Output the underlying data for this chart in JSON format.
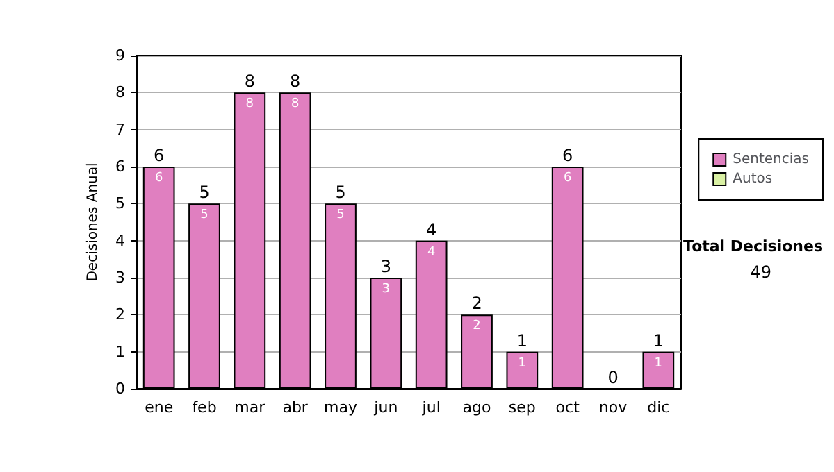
{
  "chart_data": {
    "type": "bar",
    "ylabel": "Decisiones Anual",
    "categories": [
      "ene",
      "feb",
      "mar",
      "abr",
      "may",
      "jun",
      "jul",
      "ago",
      "sep",
      "oct",
      "nov",
      "dic"
    ],
    "series": [
      {
        "name": "Sentencias",
        "color": "#e07fc0",
        "values": [
          6,
          5,
          8,
          8,
          5,
          3,
          4,
          2,
          1,
          6,
          0,
          1
        ],
        "value_labels": [
          "6",
          "5",
          "8",
          "8",
          "5",
          "3",
          "4",
          "2",
          "1",
          "6",
          null,
          "1"
        ]
      },
      {
        "name": "Autos",
        "color": "#d9f0a3",
        "values": [
          0,
          0,
          0,
          0,
          0,
          0,
          0,
          0,
          0,
          0,
          0,
          0
        ]
      }
    ],
    "stacked": true,
    "totals": [
      "6",
      "5",
      "8",
      "8",
      "5",
      "3",
      "4",
      "2",
      "1",
      "6",
      "0",
      "1"
    ],
    "ylim": [
      0,
      9
    ],
    "yticks": [
      0,
      1,
      2,
      3,
      4,
      5,
      6,
      7,
      8,
      9
    ],
    "grid": "y",
    "legend": "right",
    "annotations": [
      "Total Decisiones",
      "49"
    ]
  }
}
